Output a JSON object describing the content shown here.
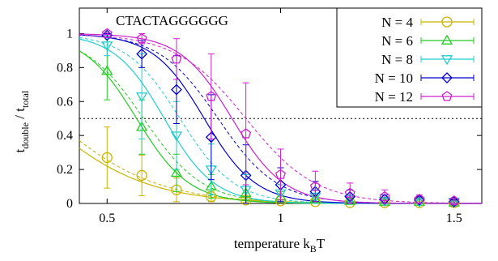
{
  "chart_data": {
    "type": "line",
    "annotation": "CTACTAGGGGGG",
    "xlabel": "temperature  k_B T",
    "xlabel_main": "temperature  k",
    "xlabel_sub": "B",
    "xlabel_tail": "T",
    "ylabel_main": "t",
    "ylabel_sub1": "double",
    "ylabel_mid": " / t",
    "ylabel_sub2": "total",
    "xlim": [
      0.42,
      1.58
    ],
    "ylim": [
      0,
      1.15
    ],
    "xticks": [
      0.5,
      1,
      1.5
    ],
    "xtick_labels": [
      "0.5",
      "1",
      "1.5"
    ],
    "yticks": [
      0,
      0.2,
      0.4,
      0.6,
      0.8,
      1
    ],
    "ytick_labels": [
      "0",
      "0.2",
      "0.4",
      "0.6",
      "0.8",
      "1"
    ],
    "reference_line_y": 0.5,
    "legend_position": "top-right",
    "series": [
      {
        "name": "N = 4",
        "color": "#c8b400",
        "marker": "circle",
        "x": [
          0.5,
          0.6,
          0.7,
          0.8,
          0.9,
          1.0,
          1.1,
          1.2,
          1.3,
          1.4,
          1.5
        ],
        "y": [
          0.27,
          0.165,
          0.08,
          0.04,
          0.02,
          0.015,
          0.01,
          0.005,
          0.005,
          0.005,
          0.005
        ],
        "err": [
          0.18,
          0.12,
          0.07,
          0.03,
          0.015,
          0.01,
          0.01,
          0.005,
          0.005,
          0.005,
          0.005
        ],
        "fit_Tm": 0.31,
        "fit_w": 0.15,
        "fit2_Tm": 0.34,
        "fit2_w": 0.15
      },
      {
        "name": "N = 6",
        "color": "#22cc22",
        "marker": "triangle-up",
        "x": [
          0.5,
          0.6,
          0.7,
          0.8,
          0.9,
          1.0,
          1.1,
          1.2,
          1.3,
          1.4,
          1.5
        ],
        "y": [
          0.78,
          0.45,
          0.18,
          0.1,
          0.06,
          0.04,
          0.025,
          0.015,
          0.01,
          0.01,
          0.005
        ],
        "err": [
          0.17,
          0.16,
          0.11,
          0.07,
          0.04,
          0.03,
          0.02,
          0.015,
          0.01,
          0.01,
          0.005
        ],
        "fit_Tm": 0.585,
        "fit_w": 0.076,
        "fit2_Tm": 0.605,
        "fit2_w": 0.085
      },
      {
        "name": "N = 8",
        "color": "#22cccc",
        "marker": "triangle-down",
        "x": [
          0.5,
          0.6,
          0.7,
          0.8,
          0.9,
          1.0,
          1.1,
          1.2,
          1.3,
          1.4,
          1.5
        ],
        "y": [
          0.93,
          0.63,
          0.4,
          0.2,
          0.08,
          0.06,
          0.04,
          0.025,
          0.015,
          0.01,
          0.01
        ],
        "err": [
          0.06,
          0.25,
          0.2,
          0.15,
          0.09,
          0.05,
          0.04,
          0.025,
          0.015,
          0.01,
          0.01
        ],
        "fit_Tm": 0.665,
        "fit_w": 0.072,
        "fit2_Tm": 0.71,
        "fit2_w": 0.078
      },
      {
        "name": "N = 10",
        "color": "#0000cc",
        "marker": "diamond",
        "x": [
          0.5,
          0.6,
          0.7,
          0.8,
          0.9,
          1.0,
          1.1,
          1.2,
          1.3,
          1.4,
          1.5
        ],
        "y": [
          0.99,
          0.88,
          0.67,
          0.39,
          0.165,
          0.11,
          0.07,
          0.04,
          0.025,
          0.02,
          0.01
        ],
        "err": [
          0.01,
          0.08,
          0.2,
          0.25,
          0.18,
          0.1,
          0.06,
          0.04,
          0.025,
          0.02,
          0.01
        ],
        "fit_Tm": 0.78,
        "fit_w": 0.074,
        "fit2_Tm": 0.82,
        "fit2_w": 0.085
      },
      {
        "name": "N = 12",
        "color": "#cc22cc",
        "marker": "pentagon",
        "x": [
          0.5,
          0.6,
          0.7,
          0.8,
          0.9,
          1.0,
          1.1,
          1.2,
          1.3,
          1.4,
          1.5
        ],
        "y": [
          1.0,
          0.97,
          0.85,
          0.63,
          0.41,
          0.17,
          0.1,
          0.06,
          0.04,
          0.025,
          0.015
        ],
        "err": [
          0.005,
          0.03,
          0.12,
          0.25,
          0.3,
          0.15,
          0.09,
          0.06,
          0.04,
          0.025,
          0.015
        ],
        "fit_Tm": 0.86,
        "fit_w": 0.075,
        "fit2_Tm": 0.9,
        "fit2_w": 0.1
      }
    ]
  }
}
